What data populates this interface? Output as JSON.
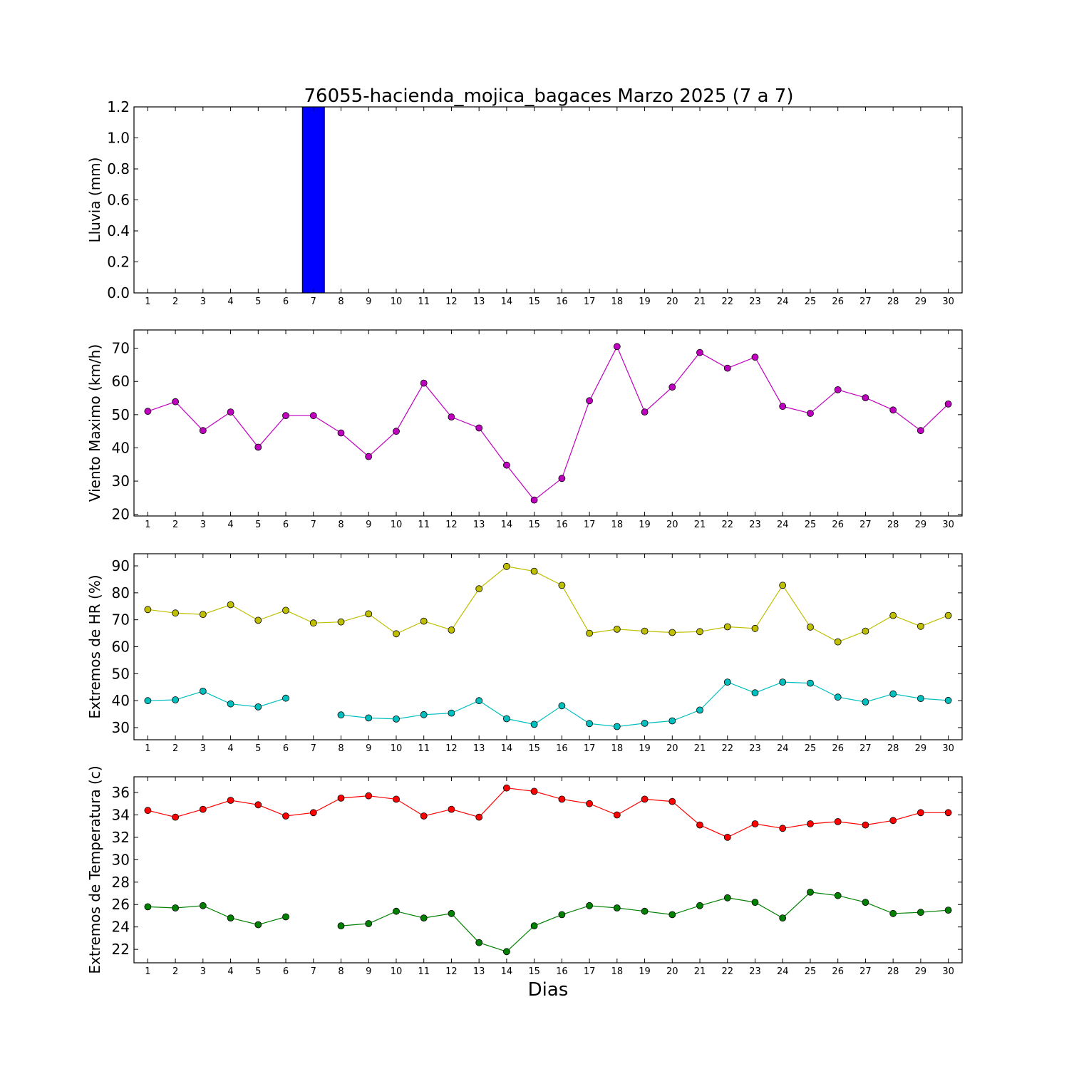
{
  "title": "76055-hacienda_mojica_bagaces Marzo 2025  (7 a 7)",
  "xlabel": "Dias",
  "chart_data": [
    {
      "type": "bar",
      "ylabel": "Lluvia (mm)",
      "ylim": [
        0,
        1.2
      ],
      "yticks": [
        0.0,
        0.2,
        0.4,
        0.6,
        0.8,
        1.0,
        1.2
      ],
      "ytick_labels": [
        "0.0",
        "0.2",
        "0.4",
        "0.6",
        "0.8",
        "1.0",
        "1.2"
      ],
      "x": [
        1,
        2,
        3,
        4,
        5,
        6,
        7,
        8,
        9,
        10,
        11,
        12,
        13,
        14,
        15,
        16,
        17,
        18,
        19,
        20,
        21,
        22,
        23,
        24,
        25,
        26,
        27,
        28,
        29,
        30
      ],
      "series": [
        {
          "color": "#0000ff",
          "values": [
            0,
            0,
            0,
            0,
            0,
            0,
            1.2,
            0,
            0,
            0,
            0,
            0,
            0,
            0,
            0,
            0,
            0,
            0,
            0,
            0,
            0,
            0,
            0,
            0,
            0,
            0,
            0,
            0,
            0,
            0
          ]
        }
      ]
    },
    {
      "type": "line",
      "ylabel": "Viento Maximo (km/h)",
      "ylim": [
        19.5,
        75.5
      ],
      "yticks": [
        20,
        30,
        40,
        50,
        60,
        70
      ],
      "ytick_labels": [
        "20",
        "30",
        "40",
        "50",
        "60",
        "70"
      ],
      "x": [
        1,
        2,
        3,
        4,
        5,
        6,
        7,
        8,
        9,
        10,
        11,
        12,
        13,
        14,
        15,
        16,
        17,
        18,
        19,
        20,
        21,
        22,
        23,
        24,
        25,
        26,
        27,
        28,
        29,
        30
      ],
      "series": [
        {
          "color": "#bf00bf",
          "values": [
            51.0,
            53.9,
            45.2,
            50.8,
            40.2,
            49.7,
            49.7,
            44.5,
            37.4,
            45.0,
            59.5,
            49.3,
            46.0,
            34.8,
            24.3,
            30.8,
            54.2,
            70.5,
            50.8,
            58.3,
            68.7,
            64.0,
            67.3,
            52.5,
            50.4,
            57.5,
            55.1,
            51.4,
            45.2,
            53.2
          ]
        }
      ]
    },
    {
      "type": "line",
      "ylabel": "Extremos de HR (%)",
      "ylim": [
        25.5,
        94.5
      ],
      "yticks": [
        30,
        40,
        50,
        60,
        70,
        80,
        90
      ],
      "ytick_labels": [
        "30",
        "40",
        "50",
        "60",
        "70",
        "80",
        "90"
      ],
      "x": [
        1,
        2,
        3,
        4,
        5,
        6,
        7,
        8,
        9,
        10,
        11,
        12,
        13,
        14,
        15,
        16,
        17,
        18,
        19,
        20,
        21,
        22,
        23,
        24,
        25,
        26,
        27,
        28,
        29,
        30
      ],
      "series": [
        {
          "color": "#bfbf00",
          "values": [
            73.8,
            72.5,
            72.0,
            75.6,
            69.8,
            73.5,
            68.8,
            69.2,
            72.2,
            64.8,
            69.5,
            66.2,
            81.5,
            89.8,
            88.0,
            82.8,
            65.0,
            66.5,
            65.8,
            65.3,
            65.6,
            67.4,
            66.8,
            82.8,
            67.3,
            61.8,
            65.8,
            71.6,
            67.6,
            71.6
          ]
        },
        {
          "color": "#00bfbf",
          "values": [
            40.0,
            40.3,
            43.5,
            38.8,
            37.7,
            40.9,
            null,
            34.7,
            33.6,
            33.2,
            34.8,
            35.4,
            40.0,
            33.3,
            31.2,
            38.1,
            31.5,
            30.4,
            31.6,
            32.5,
            36.5,
            46.9,
            42.9,
            46.9,
            46.5,
            41.3,
            39.5,
            42.5,
            40.8,
            40.1
          ]
        }
      ]
    },
    {
      "type": "line",
      "ylabel": "Extremos de Temperatura (c)",
      "ylim": [
        20.8,
        37.4
      ],
      "yticks": [
        22,
        24,
        26,
        28,
        30,
        32,
        34,
        36
      ],
      "ytick_labels": [
        "22",
        "24",
        "26",
        "28",
        "30",
        "32",
        "34",
        "36"
      ],
      "x": [
        1,
        2,
        3,
        4,
        5,
        6,
        7,
        8,
        9,
        10,
        11,
        12,
        13,
        14,
        15,
        16,
        17,
        18,
        19,
        20,
        21,
        22,
        23,
        24,
        25,
        26,
        27,
        28,
        29,
        30
      ],
      "series": [
        {
          "color": "#ff0000",
          "values": [
            34.4,
            33.8,
            34.5,
            35.3,
            34.9,
            33.9,
            34.2,
            35.5,
            35.7,
            35.4,
            33.9,
            34.5,
            33.8,
            36.4,
            36.1,
            35.4,
            35.0,
            34.0,
            35.4,
            35.2,
            33.1,
            32.0,
            33.2,
            32.8,
            33.2,
            33.4,
            33.1,
            33.5,
            34.2,
            34.2
          ]
        },
        {
          "color": "#008000",
          "values": [
            25.8,
            25.7,
            25.9,
            24.8,
            24.2,
            24.9,
            null,
            24.1,
            24.3,
            25.4,
            24.8,
            25.2,
            22.6,
            21.8,
            24.1,
            25.1,
            25.9,
            25.7,
            25.4,
            25.1,
            25.9,
            26.6,
            26.2,
            24.8,
            27.1,
            26.8,
            26.2,
            25.2,
            25.3,
            25.5
          ]
        }
      ]
    }
  ]
}
